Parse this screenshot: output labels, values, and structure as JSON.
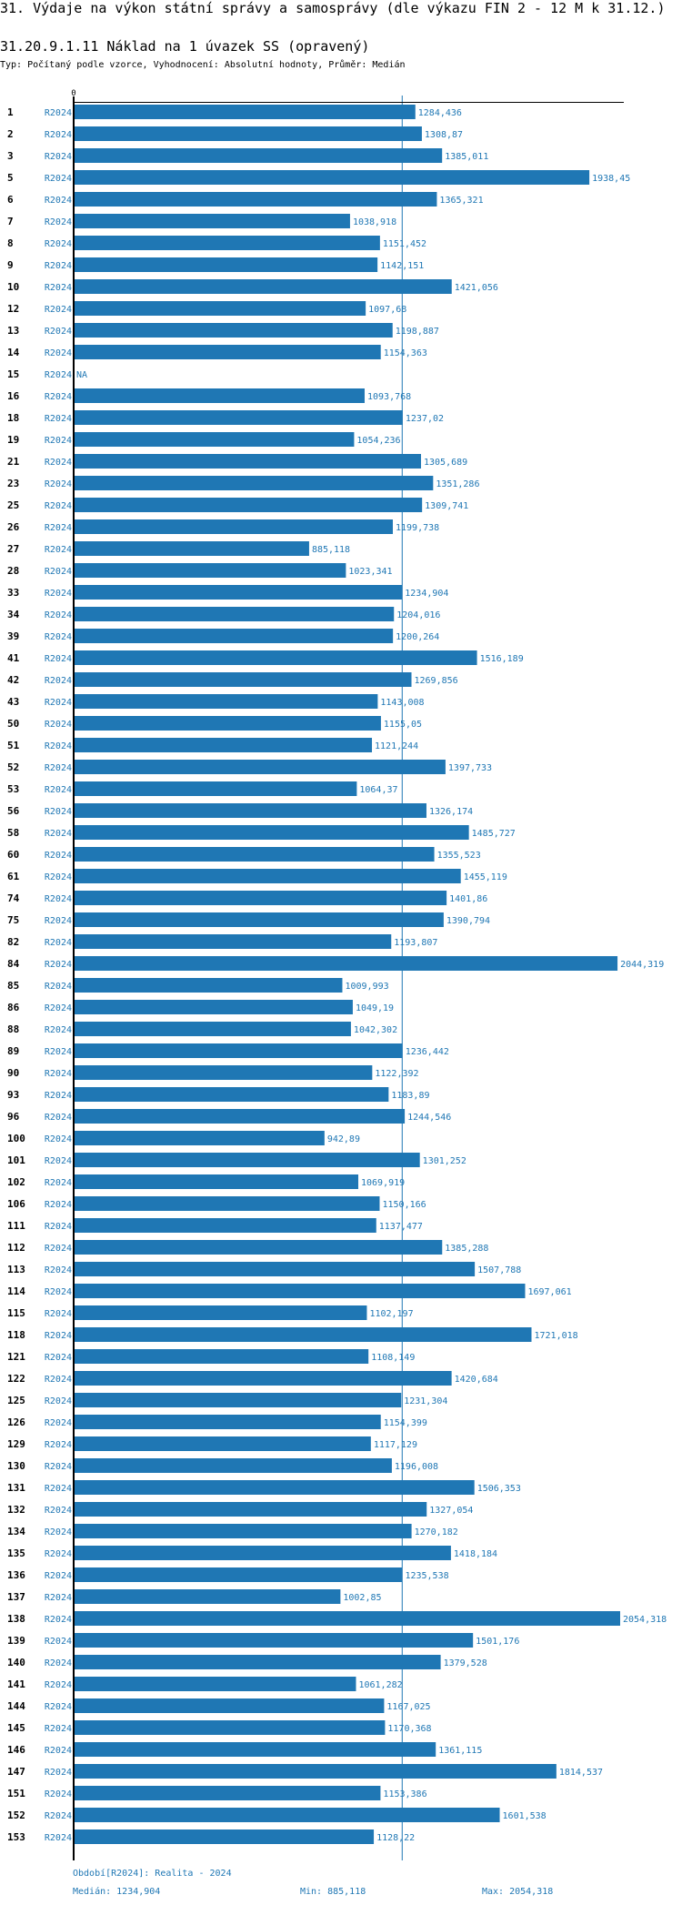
{
  "header": {
    "title": "31. Výdaje na výkon státní správy a samosprávy (dle výkazu FIN 2 - 12 M k 31.12.)",
    "subtitle": "31.20.9.1.11 Náklad na 1 úvazek SS (opravený)",
    "meta": "Typ: Počítaný podle vzorce, Vyhodnocení: Absolutní hodnoty, Průměr: Medián"
  },
  "footer": {
    "period": "Období[R2024]: Realita - 2024",
    "median": "Medián: 1234,904",
    "min": "Min: 885,118",
    "max": "Max: 2054,318"
  },
  "colors": {
    "bar": "#1f77b4",
    "axis": "#000000",
    "median_line": "#1f77b4"
  },
  "chart_data": {
    "type": "bar",
    "orientation": "horizontal",
    "title": "31.20.9.1.11 Náklad na 1 úvazek SS (opravený)",
    "xlabel": "",
    "ylabel": "",
    "x_tick_labels": [
      "0"
    ],
    "xlim": [
      0,
      2054.318
    ],
    "series_name": "R2024",
    "reference_line": {
      "label": "Medián",
      "value": 1234.904
    },
    "categories": [
      "1",
      "2",
      "3",
      "5",
      "6",
      "7",
      "8",
      "9",
      "10",
      "12",
      "13",
      "14",
      "15",
      "16",
      "18",
      "19",
      "21",
      "23",
      "25",
      "26",
      "27",
      "28",
      "33",
      "34",
      "39",
      "41",
      "42",
      "43",
      "50",
      "51",
      "52",
      "53",
      "56",
      "58",
      "60",
      "61",
      "74",
      "75",
      "82",
      "84",
      "85",
      "86",
      "88",
      "89",
      "90",
      "93",
      "96",
      "100",
      "101",
      "102",
      "106",
      "111",
      "112",
      "113",
      "114",
      "115",
      "118",
      "121",
      "122",
      "125",
      "126",
      "129",
      "130",
      "131",
      "132",
      "134",
      "135",
      "136",
      "137",
      "138",
      "139",
      "140",
      "141",
      "144",
      "145",
      "146",
      "147",
      "151",
      "152",
      "153"
    ],
    "values": [
      1284.436,
      1308.87,
      1385.011,
      1938.45,
      1365.321,
      1038.918,
      1151.452,
      1142.151,
      1421.056,
      1097.68,
      1198.887,
      1154.363,
      null,
      1093.768,
      1237.02,
      1054.236,
      1305.689,
      1351.286,
      1309.741,
      1199.738,
      885.118,
      1023.341,
      1234.904,
      1204.016,
      1200.264,
      1516.189,
      1269.856,
      1143.008,
      1155.05,
      1121.244,
      1397.733,
      1064.37,
      1326.174,
      1485.727,
      1355.523,
      1455.119,
      1401.86,
      1390.794,
      1193.807,
      2044.319,
      1009.993,
      1049.19,
      1042.302,
      1236.442,
      1122.392,
      1183.89,
      1244.546,
      942.89,
      1301.252,
      1069.919,
      1150.166,
      1137.477,
      1385.288,
      1507.788,
      1697.061,
      1102.197,
      1721.018,
      1108.149,
      1420.684,
      1231.304,
      1154.399,
      1117.129,
      1196.008,
      1506.353,
      1327.054,
      1270.182,
      1418.184,
      1235.538,
      1002.85,
      2054.318,
      1501.176,
      1379.528,
      1061.282,
      1167.025,
      1170.368,
      1361.115,
      1814.537,
      1153.386,
      1601.538,
      1128.22
    ],
    "value_labels": [
      "1284,436",
      "1308,87",
      "1385,011",
      "1938,45",
      "1365,321",
      "1038,918",
      "1151,452",
      "1142,151",
      "1421,056",
      "1097,68",
      "1198,887",
      "1154,363",
      "NA",
      "1093,768",
      "1237,02",
      "1054,236",
      "1305,689",
      "1351,286",
      "1309,741",
      "1199,738",
      "885,118",
      "1023,341",
      "1234,904",
      "1204,016",
      "1200,264",
      "1516,189",
      "1269,856",
      "1143,008",
      "1155,05",
      "1121,244",
      "1397,733",
      "1064,37",
      "1326,174",
      "1485,727",
      "1355,523",
      "1455,119",
      "1401,86",
      "1390,794",
      "1193,807",
      "2044,319",
      "1009,993",
      "1049,19",
      "1042,302",
      "1236,442",
      "1122,392",
      "1183,89",
      "1244,546",
      "942,89",
      "1301,252",
      "1069,919",
      "1150,166",
      "1137,477",
      "1385,288",
      "1507,788",
      "1697,061",
      "1102,197",
      "1721,018",
      "1108,149",
      "1420,684",
      "1231,304",
      "1154,399",
      "1117,129",
      "1196,008",
      "1506,353",
      "1327,054",
      "1270,182",
      "1418,184",
      "1235,538",
      "1002,85",
      "2054,318",
      "1501,176",
      "1379,528",
      "1061,282",
      "1167,025",
      "1170,368",
      "1361,115",
      "1814,537",
      "1153,386",
      "1601,538",
      "1128,22"
    ],
    "legend": "none",
    "grid": false
  }
}
